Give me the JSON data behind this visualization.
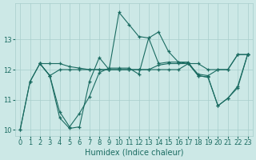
{
  "xlabel": "Humidex (Indice chaleur)",
  "bg_color": "#cce8e6",
  "grid_color": "#a8cecc",
  "line_color": "#1a6b61",
  "xlim": [
    -0.5,
    23.5
  ],
  "ylim": [
    9.8,
    14.2
  ],
  "yticks": [
    10,
    11,
    12,
    13
  ],
  "xticks": [
    0,
    1,
    2,
    3,
    4,
    5,
    6,
    7,
    8,
    9,
    10,
    11,
    12,
    13,
    14,
    15,
    16,
    17,
    18,
    19,
    20,
    21,
    22,
    23
  ],
  "lines": [
    {
      "x": [
        0,
        1,
        2,
        3,
        4,
        5,
        6,
        7,
        8,
        9,
        10,
        11,
        12,
        13,
        14,
        15,
        16,
        17,
        18,
        19,
        20,
        21,
        22,
        23
      ],
      "y": [
        10.0,
        11.6,
        12.2,
        12.2,
        12.2,
        12.1,
        12.05,
        12.0,
        12.0,
        12.0,
        12.0,
        12.0,
        12.0,
        12.0,
        12.0,
        12.0,
        12.0,
        12.2,
        12.2,
        12.0,
        12.0,
        12.0,
        12.5,
        12.5
      ]
    },
    {
      "x": [
        0,
        1,
        2,
        3,
        4,
        5,
        6,
        7,
        8,
        9,
        10,
        11,
        12,
        13,
        14,
        15,
        16,
        17,
        18,
        19,
        20,
        21,
        22,
        23
      ],
      "y": [
        10.0,
        11.6,
        12.2,
        11.8,
        10.4,
        10.05,
        10.1,
        11.6,
        12.4,
        12.0,
        13.9,
        13.5,
        13.1,
        13.05,
        13.25,
        12.6,
        12.25,
        12.2,
        11.8,
        11.75,
        10.8,
        11.05,
        11.4,
        12.5
      ]
    },
    {
      "x": [
        2,
        3,
        4,
        5,
        6,
        7,
        8,
        9,
        10,
        11,
        12,
        13,
        14,
        15,
        16,
        17,
        18,
        19,
        20,
        21,
        22,
        23
      ],
      "y": [
        12.2,
        11.8,
        10.6,
        10.1,
        10.55,
        11.1,
        11.9,
        12.05,
        12.05,
        12.05,
        11.85,
        13.05,
        12.2,
        12.25,
        12.25,
        12.25,
        11.8,
        11.75,
        10.8,
        11.05,
        11.45,
        12.5
      ]
    },
    {
      "x": [
        2,
        3,
        4,
        5,
        6,
        7,
        8,
        9,
        10,
        11,
        12,
        13,
        14,
        15,
        16,
        17,
        18,
        19,
        20,
        21,
        22,
        23
      ],
      "y": [
        12.2,
        11.8,
        12.0,
        12.0,
        12.0,
        12.0,
        12.0,
        12.0,
        12.0,
        12.0,
        12.0,
        12.0,
        12.15,
        12.2,
        12.2,
        12.2,
        11.85,
        11.8,
        12.0,
        12.0,
        12.5,
        12.5
      ]
    }
  ]
}
